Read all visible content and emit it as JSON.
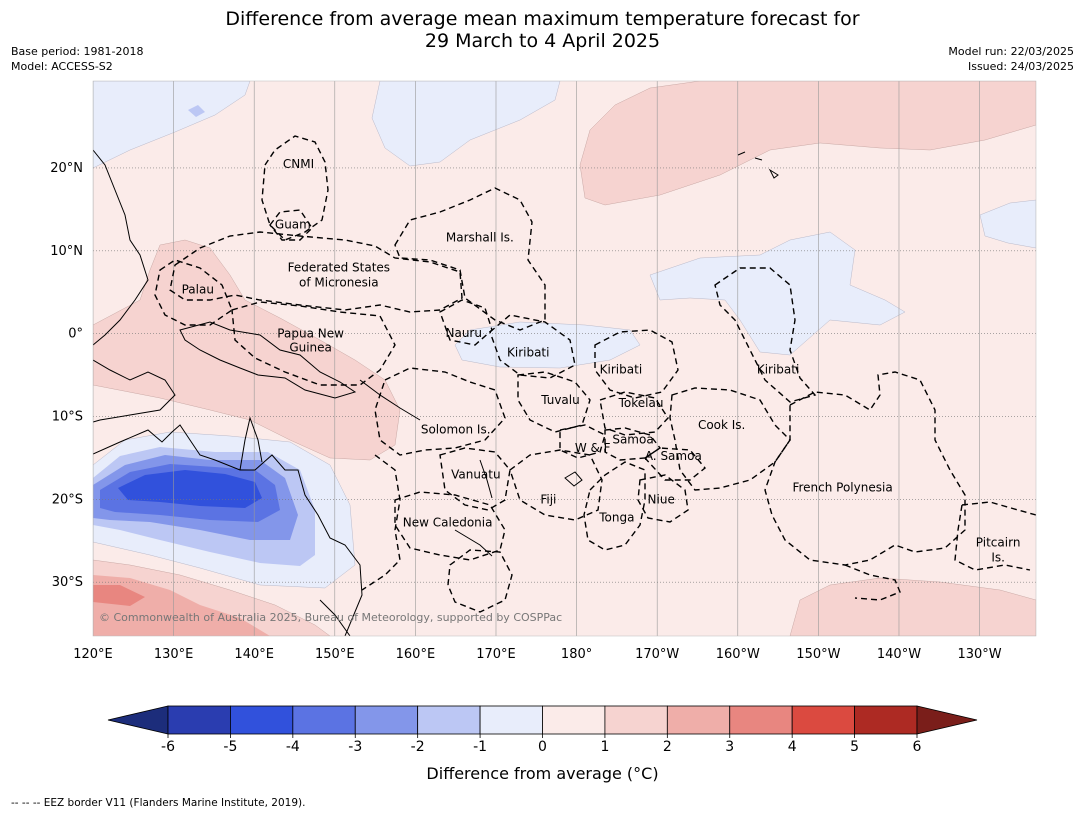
{
  "title": {
    "line1": "Difference from average mean maximum temperature forecast for",
    "line2": "29 March to 4 April 2025"
  },
  "meta_left": {
    "base_period": "Base period: 1981-2018",
    "model": "Model: ACCESS-S2"
  },
  "meta_right": {
    "model_run": "Model run: 22/03/2025",
    "issued": "Issued: 24/03/2025"
  },
  "map": {
    "lon_range": [
      120,
      237
    ],
    "lat_range": [
      -36.5,
      30.5
    ],
    "lon_ticks": [
      {
        "lon": 120,
        "label": "120°E"
      },
      {
        "lon": 130,
        "label": "130°E"
      },
      {
        "lon": 140,
        "label": "140°E"
      },
      {
        "lon": 150,
        "label": "150°E"
      },
      {
        "lon": 160,
        "label": "160°E"
      },
      {
        "lon": 170,
        "label": "170°E"
      },
      {
        "lon": 180,
        "label": "180°"
      },
      {
        "lon": 190,
        "label": "170°W"
      },
      {
        "lon": 200,
        "label": "160°W"
      },
      {
        "lon": 210,
        "label": "150°W"
      },
      {
        "lon": 220,
        "label": "140°W"
      },
      {
        "lon": 230,
        "label": "130°W"
      }
    ],
    "lat_ticks": [
      {
        "lat": 20,
        "label": "20°N"
      },
      {
        "lat": 10,
        "label": "10°N"
      },
      {
        "lat": 0,
        "label": "0°"
      },
      {
        "lat": -10,
        "label": "10°S"
      },
      {
        "lat": -20,
        "label": "20°S"
      },
      {
        "lat": -30,
        "label": "30°S"
      }
    ],
    "region_labels": [
      {
        "text": "CNMI",
        "lon": 145.5,
        "lat": 20.5
      },
      {
        "text": "Guam",
        "lon": 144.8,
        "lat": 13.2
      },
      {
        "text": "Marshall Is.",
        "lon": 168.0,
        "lat": 11.6
      },
      {
        "text": "Federated States",
        "lon": 150.5,
        "lat": 8.0
      },
      {
        "text": "of Micronesia",
        "lon": 150.5,
        "lat": 6.2
      },
      {
        "text": "Palau",
        "lon": 133.0,
        "lat": 5.3
      },
      {
        "text": "Papua New",
        "lon": 147.0,
        "lat": 0.0
      },
      {
        "text": "Guinea",
        "lon": 147.0,
        "lat": -1.7
      },
      {
        "text": "Nauru",
        "lon": 166.0,
        "lat": 0.1
      },
      {
        "text": "Kiribati",
        "lon": 174.0,
        "lat": -2.3
      },
      {
        "text": "Kiribati",
        "lon": 185.5,
        "lat": -4.3
      },
      {
        "text": "Kiribati",
        "lon": 205.0,
        "lat": -4.3
      },
      {
        "text": "Tuvalu",
        "lon": 178.0,
        "lat": -8.0
      },
      {
        "text": "Tokelau",
        "lon": 188.0,
        "lat": -8.4
      },
      {
        "text": "Cook Is.",
        "lon": 198.0,
        "lat": -11.0
      },
      {
        "text": "Solomon Is.",
        "lon": 165.0,
        "lat": -11.6
      },
      {
        "text": "Samoa",
        "lon": 187.0,
        "lat": -12.8
      },
      {
        "text": "W & F",
        "lon": 182.0,
        "lat": -13.8
      },
      {
        "text": "A. Samoa",
        "lon": 192.0,
        "lat": -14.8
      },
      {
        "text": "Vanuatu",
        "lon": 167.5,
        "lat": -17.0
      },
      {
        "text": "Fiji",
        "lon": 176.5,
        "lat": -20.0
      },
      {
        "text": "Niue",
        "lon": 190.5,
        "lat": -20.0
      },
      {
        "text": "Tonga",
        "lon": 185.0,
        "lat": -22.2
      },
      {
        "text": "French Polynesia",
        "lon": 213.0,
        "lat": -18.6
      },
      {
        "text": "New Caledonia",
        "lon": 164.0,
        "lat": -22.8
      },
      {
        "text": "Pitcairn",
        "lon": 232.3,
        "lat": -25.2
      },
      {
        "text": "Is.",
        "lon": 232.3,
        "lat": -27.0
      }
    ],
    "copyright": "© Commonwealth of Australia 2025, Bureau of Meteorology, supported by COSPPac"
  },
  "colorbar": {
    "label": "Difference from average (°C)",
    "ticks": [
      "-6",
      "-5",
      "-4",
      "-3",
      "-2",
      "-1",
      "0",
      "1",
      "2",
      "3",
      "4",
      "5",
      "6"
    ],
    "colors": [
      "#1c2d7b",
      "#2a3db0",
      "#3151dc",
      "#5b73e3",
      "#8396ea",
      "#bcc7f4",
      "#e8edfb",
      "#fbebe9",
      "#f6d3d0",
      "#efaea9",
      "#e88680",
      "#db4a40",
      "#ad2a23",
      "#7a1e1a"
    ]
  },
  "footer": "-- -- -- EEZ border V11 (Flanders Marine Institute, 2019)."
}
